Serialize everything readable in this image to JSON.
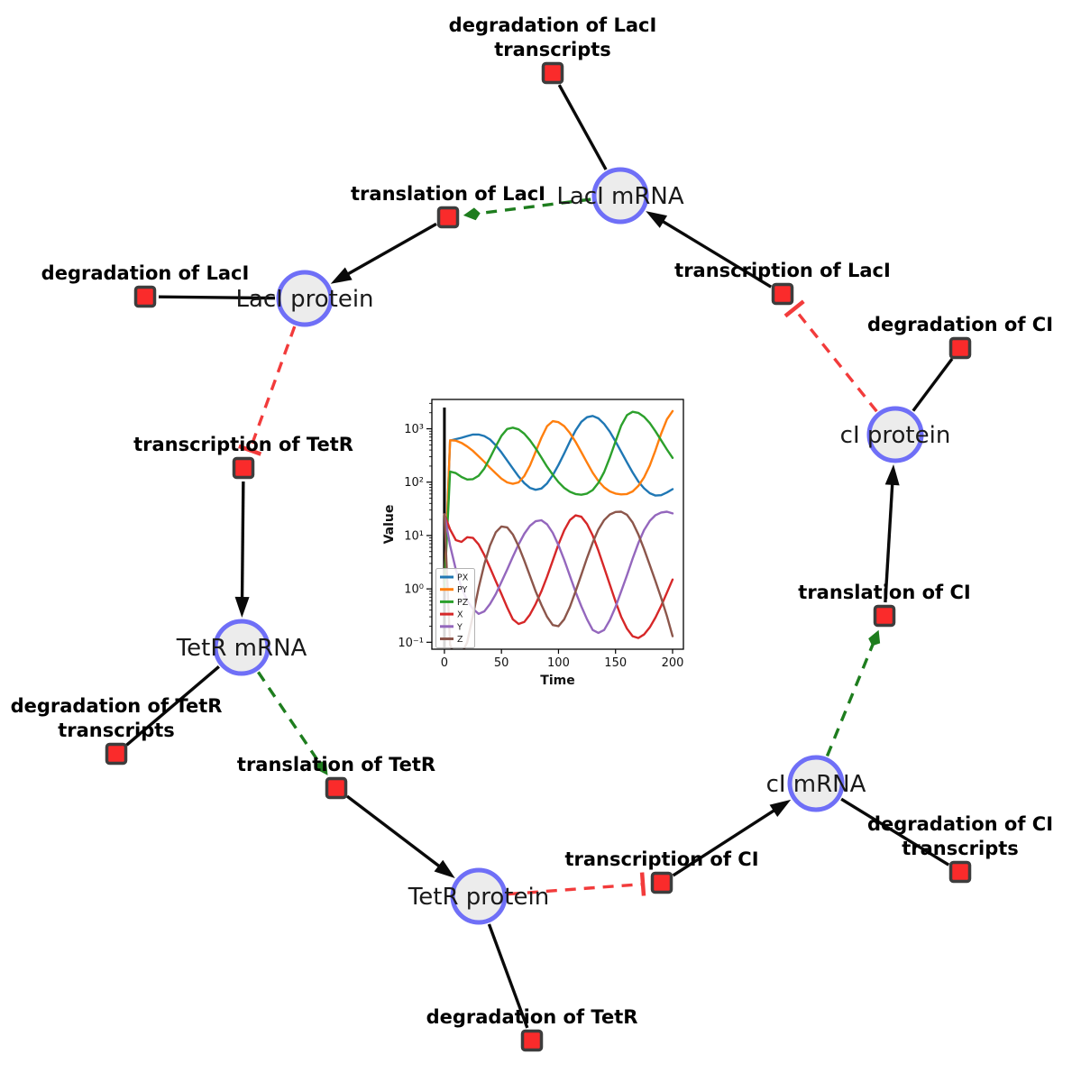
{
  "figure": {
    "background": "#ffffff",
    "description_colors": {
      "species_fill": "#ececec",
      "species_stroke": "#6f6ff7",
      "reaction_fill": "#fa2b2b",
      "reaction_stroke": "#3d3d3d",
      "production_edge": "#0a0a0a",
      "modifier_edge": "#1e7d1e",
      "inhibition_edge": "#f23b3b",
      "species_label": "#1a1a1a",
      "reaction_label": "#000000"
    }
  },
  "network": {
    "species": [
      {
        "id": "laci_mrna",
        "label": "LacI mRNA"
      },
      {
        "id": "laci_protein",
        "label": "LacI protein"
      },
      {
        "id": "tetr_mrna",
        "label": "TetR mRNA"
      },
      {
        "id": "tetr_protein",
        "label": "TetR protein"
      },
      {
        "id": "ci_mrna",
        "label": "cI mRNA"
      },
      {
        "id": "ci_protein",
        "label": "cI protein"
      }
    ],
    "reactions": [
      {
        "id": "deg_laci_tx",
        "label_lines": [
          "degradation of LacI",
          "transcripts"
        ]
      },
      {
        "id": "tl_laci",
        "label_lines": [
          "translation of LacI"
        ]
      },
      {
        "id": "tx_laci",
        "label_lines": [
          "transcription of LacI"
        ]
      },
      {
        "id": "deg_laci",
        "label_lines": [
          "degradation of LacI"
        ]
      },
      {
        "id": "tx_tetr",
        "label_lines": [
          "transcription of TetR"
        ]
      },
      {
        "id": "deg_tetr_tx",
        "label_lines": [
          "degradation of TetR",
          "transcripts"
        ]
      },
      {
        "id": "tl_tetr",
        "label_lines": [
          "translation of TetR"
        ]
      },
      {
        "id": "deg_tetr",
        "label_lines": [
          "degradation of TetR"
        ]
      },
      {
        "id": "tx_ci",
        "label_lines": [
          "transcription of CI"
        ]
      },
      {
        "id": "deg_ci_tx",
        "label_lines": [
          "degradation of CI",
          "transcripts"
        ]
      },
      {
        "id": "tl_ci",
        "label_lines": [
          "translation of CI"
        ]
      },
      {
        "id": "deg_ci",
        "label_lines": [
          "degradation of CI"
        ]
      }
    ],
    "edges": [
      {
        "source": "tx_laci",
        "target": "laci_mrna",
        "kind": "production"
      },
      {
        "source": "laci_mrna",
        "target": "deg_laci_tx",
        "kind": "consumption"
      },
      {
        "source": "laci_mrna",
        "target": "tl_laci",
        "kind": "modifier"
      },
      {
        "source": "tl_laci",
        "target": "laci_protein",
        "kind": "production"
      },
      {
        "source": "laci_protein",
        "target": "deg_laci",
        "kind": "consumption"
      },
      {
        "source": "laci_protein",
        "target": "tx_tetr",
        "kind": "inhibition"
      },
      {
        "source": "tx_tetr",
        "target": "tetr_mrna",
        "kind": "production"
      },
      {
        "source": "tetr_mrna",
        "target": "deg_tetr_tx",
        "kind": "consumption"
      },
      {
        "source": "tetr_mrna",
        "target": "tl_tetr",
        "kind": "modifier"
      },
      {
        "source": "tl_tetr",
        "target": "tetr_protein",
        "kind": "production"
      },
      {
        "source": "tetr_protein",
        "target": "deg_tetr",
        "kind": "consumption"
      },
      {
        "source": "tetr_protein",
        "target": "tx_ci",
        "kind": "inhibition"
      },
      {
        "source": "tx_ci",
        "target": "ci_mrna",
        "kind": "production"
      },
      {
        "source": "ci_mrna",
        "target": "deg_ci_tx",
        "kind": "consumption"
      },
      {
        "source": "ci_mrna",
        "target": "tl_ci",
        "kind": "modifier"
      },
      {
        "source": "tl_ci",
        "target": "ci_protein",
        "kind": "production"
      },
      {
        "source": "ci_protein",
        "target": "deg_ci",
        "kind": "consumption"
      },
      {
        "source": "ci_protein",
        "target": "tx_laci",
        "kind": "inhibition"
      }
    ]
  },
  "chart_data": {
    "type": "line",
    "title": "",
    "xlabel": "Time",
    "ylabel": "Value",
    "y_scale": "log",
    "x_ticks": [
      0,
      50,
      100,
      150,
      200
    ],
    "y_tick_labels": [
      "10⁻¹",
      "10⁰",
      "10¹",
      "10²",
      "10³"
    ],
    "y_tick_decades": [
      -1,
      0,
      1,
      2,
      3
    ],
    "xlim": [
      -11,
      209.5
    ],
    "ylim_log10": [
      -1.13,
      3.55
    ],
    "legend_position": "lower left",
    "vline_at_x": 0,
    "x": [
      0,
      5,
      10,
      15,
      20,
      25,
      30,
      35,
      40,
      45,
      50,
      55,
      60,
      65,
      70,
      75,
      80,
      85,
      90,
      95,
      100,
      105,
      110,
      115,
      120,
      125,
      130,
      135,
      140,
      145,
      150,
      155,
      160,
      165,
      170,
      175,
      180,
      185,
      190,
      195,
      200
    ],
    "series": [
      {
        "name": "PX",
        "color": "#1f77b4",
        "values": [
          1,
          600,
          640,
          680,
          730,
          780,
          780,
          730,
          630,
          490,
          360,
          255,
          180,
          128,
          96,
          78,
          72,
          76,
          95,
          135,
          210,
          345,
          580,
          930,
          1350,
          1650,
          1740,
          1570,
          1230,
          880,
          580,
          370,
          235,
          152,
          103,
          77,
          62,
          56,
          57,
          64,
          74
        ]
      },
      {
        "name": "PY",
        "color": "#ff7f0e",
        "values": [
          1,
          610,
          600,
          545,
          465,
          385,
          305,
          240,
          186,
          146,
          116,
          99,
          93,
          99,
          130,
          205,
          370,
          680,
          1120,
          1390,
          1330,
          1120,
          830,
          570,
          365,
          232,
          150,
          105,
          80,
          67,
          61,
          59,
          60,
          67,
          85,
          122,
          205,
          395,
          810,
          1500,
          2150
        ]
      },
      {
        "name": "PZ",
        "color": "#2ca02c",
        "values": [
          1,
          158,
          148,
          125,
          112,
          114,
          132,
          180,
          285,
          470,
          740,
          990,
          1050,
          975,
          810,
          610,
          430,
          290,
          195,
          138,
          100,
          78,
          66,
          60,
          58,
          61,
          71,
          97,
          155,
          290,
          580,
          1150,
          1800,
          2080,
          1990,
          1680,
          1280,
          900,
          610,
          410,
          285
        ]
      },
      {
        "name": "X",
        "color": "#d62728",
        "values": [
          25,
          13,
          8.2,
          7.6,
          9.3,
          9,
          6.8,
          4.3,
          2.5,
          1.4,
          0.8,
          0.45,
          0.27,
          0.22,
          0.24,
          0.33,
          0.52,
          0.9,
          1.7,
          3.4,
          6.8,
          12.5,
          19.5,
          23.8,
          22.5,
          16.5,
          10,
          5.2,
          2.5,
          1.2,
          0.58,
          0.3,
          0.18,
          0.13,
          0.12,
          0.14,
          0.19,
          0.29,
          0.48,
          0.85,
          1.5
        ]
      },
      {
        "name": "Y",
        "color": "#9467bd",
        "values": [
          25,
          6.5,
          2.3,
          1.05,
          0.6,
          0.42,
          0.34,
          0.38,
          0.52,
          0.8,
          1.35,
          2.3,
          4,
          6.8,
          10.8,
          15.2,
          18.5,
          19.3,
          16.2,
          11.2,
          6.6,
          3.5,
          1.75,
          0.88,
          0.47,
          0.27,
          0.17,
          0.15,
          0.17,
          0.26,
          0.46,
          0.9,
          1.8,
          3.7,
          7.2,
          12.6,
          18.8,
          24,
          27,
          28,
          26
        ]
      },
      {
        "name": "Z",
        "color": "#8c564b",
        "values": [
          25,
          0.09,
          0.05,
          0.06,
          0.1,
          0.32,
          1.05,
          2.9,
          6.5,
          11.5,
          14.8,
          14.2,
          10.5,
          6.3,
          3.4,
          1.75,
          0.9,
          0.5,
          0.3,
          0.21,
          0.2,
          0.27,
          0.46,
          0.9,
          1.85,
          3.8,
          7.4,
          13,
          19.5,
          24.8,
          27.6,
          28,
          24.5,
          17.5,
          10.5,
          5.6,
          2.8,
          1.4,
          0.68,
          0.31,
          0.13
        ]
      }
    ]
  }
}
